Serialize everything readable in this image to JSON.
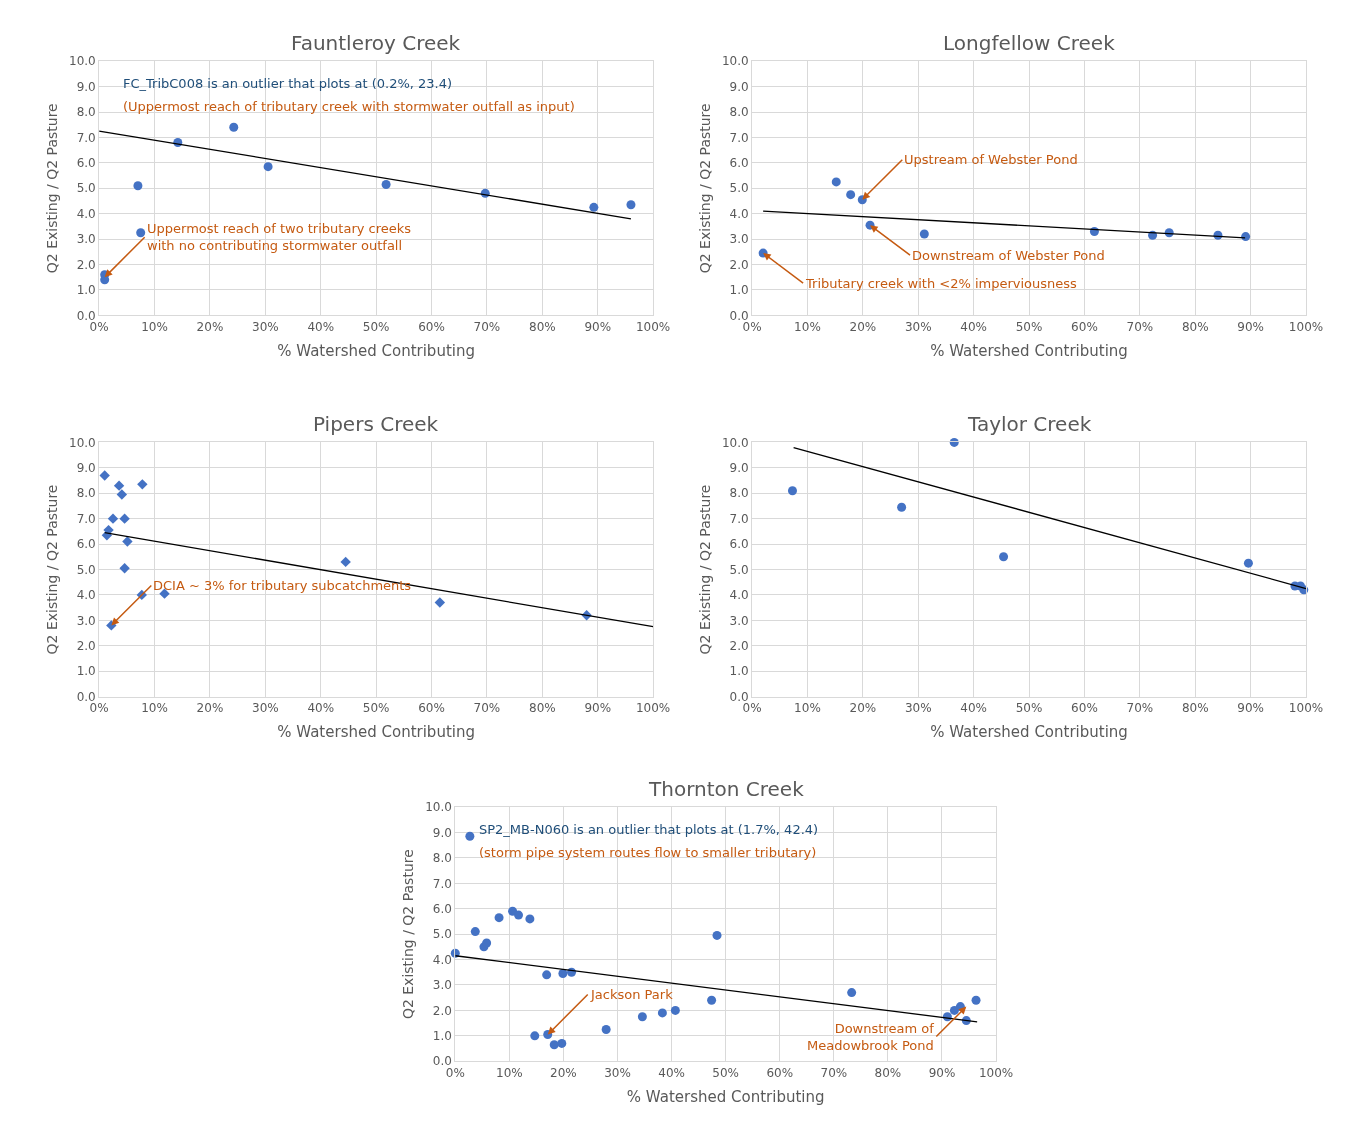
{
  "chart_data": [
    {
      "type": "scatter",
      "title": "Fauntleroy Creek",
      "xlabel": "% Watershed Contributing",
      "ylabel": "Q2 Existing / Q2 Pasture",
      "xlim": [
        0,
        100
      ],
      "ylim": [
        0,
        10
      ],
      "xticks": [
        {
          "value": 0,
          "label": "0%"
        },
        {
          "value": 10,
          "label": "10%"
        },
        {
          "value": 20,
          "label": "20%"
        },
        {
          "value": 30,
          "label": "30%"
        },
        {
          "value": 40,
          "label": "40%"
        },
        {
          "value": 50,
          "label": "50%"
        },
        {
          "value": 60,
          "label": "60%"
        },
        {
          "value": 70,
          "label": "70%"
        },
        {
          "value": 80,
          "label": "80%"
        },
        {
          "value": 90,
          "label": "90%"
        },
        {
          "value": 100,
          "label": "100%"
        }
      ],
      "yticks": [
        {
          "value": 0,
          "label": "0.0"
        },
        {
          "value": 1,
          "label": "1.0"
        },
        {
          "value": 2,
          "label": "2.0"
        },
        {
          "value": 3,
          "label": "3.0"
        },
        {
          "value": 4,
          "label": "4.0"
        },
        {
          "value": 5,
          "label": "5.0"
        },
        {
          "value": 6,
          "label": "6.0"
        },
        {
          "value": 7,
          "label": "7.0"
        },
        {
          "value": 8,
          "label": "8.0"
        },
        {
          "value": 9,
          "label": "9.0"
        },
        {
          "value": 10,
          "label": "10.0"
        }
      ],
      "grid": true,
      "series": [
        {
          "type": "scatter",
          "marker": "circle",
          "color": "#4472c4",
          "x": [
            1,
            1,
            7,
            7.5,
            14.2,
            24.3,
            30.5,
            51.8,
            69.7,
            89.3,
            96
          ],
          "values": [
            1.6,
            1.4,
            5.1,
            3.25,
            6.8,
            7.4,
            5.85,
            5.15,
            4.8,
            4.25,
            4.35
          ]
        },
        {
          "type": "line",
          "marker": "none",
          "color": "#000000",
          "x": [
            0,
            96
          ],
          "values": [
            7.25,
            3.8
          ]
        }
      ],
      "annotations": [
        "FC_TribC008 is an outlier that plots at (0.2%, 23.4)",
        "(Uppermost reach of tributary creek with stormwater outfall as input)",
        {
          "text": "Uppermost reach of two tributary creeks\nwith no contributing stormwater outfall",
          "x": 1,
          "y": 1.5
        }
      ]
    },
    {
      "type": "scatter",
      "title": "Longfellow Creek",
      "xlabel": "% Watershed Contributing",
      "ylabel": "Q2 Existing / Q2 Pasture",
      "xlim": [
        0,
        100
      ],
      "ylim": [
        0,
        10
      ],
      "xticks": [
        {
          "value": 0,
          "label": "0%"
        },
        {
          "value": 10,
          "label": "10%"
        },
        {
          "value": 20,
          "label": "20%"
        },
        {
          "value": 30,
          "label": "30%"
        },
        {
          "value": 40,
          "label": "40%"
        },
        {
          "value": 50,
          "label": "50%"
        },
        {
          "value": 60,
          "label": "60%"
        },
        {
          "value": 70,
          "label": "70%"
        },
        {
          "value": 80,
          "label": "80%"
        },
        {
          "value": 90,
          "label": "90%"
        },
        {
          "value": 100,
          "label": "100%"
        }
      ],
      "yticks": [
        {
          "value": 0,
          "label": "0.0"
        },
        {
          "value": 1,
          "label": "1.0"
        },
        {
          "value": 2,
          "label": "2.0"
        },
        {
          "value": 3,
          "label": "3.0"
        },
        {
          "value": 4,
          "label": "4.0"
        },
        {
          "value": 5,
          "label": "5.0"
        },
        {
          "value": 6,
          "label": "6.0"
        },
        {
          "value": 7,
          "label": "7.0"
        },
        {
          "value": 8,
          "label": "8.0"
        },
        {
          "value": 9,
          "label": "9.0"
        },
        {
          "value": 10,
          "label": "10.0"
        }
      ],
      "grid": true,
      "series": [
        {
          "type": "scatter",
          "marker": "circle",
          "color": "#4472c4",
          "x": [
            2,
            15.2,
            17.8,
            19.9,
            21.3,
            31.1,
            61.8,
            72.3,
            75.3,
            84.1,
            89.1
          ],
          "values": [
            2.45,
            5.25,
            4.75,
            4.55,
            3.55,
            3.2,
            3.3,
            3.15,
            3.25,
            3.15,
            3.1
          ]
        },
        {
          "type": "line",
          "marker": "none",
          "color": "#000000",
          "x": [
            2,
            89
          ],
          "values": [
            4.1,
            3.05
          ]
        }
      ],
      "annotations": [
        {
          "text": "Upstream of Webster Pond",
          "x": 19.9,
          "y": 4.55
        },
        {
          "text": "Downstream of Webster Pond",
          "x": 21.3,
          "y": 3.55
        },
        {
          "text": "Tributary creek with <2% imperviousness",
          "x": 2,
          "y": 2.45
        }
      ]
    },
    {
      "type": "scatter",
      "title": "Pipers Creek",
      "xlabel": "% Watershed Contributing",
      "ylabel": "Q2 Existing / Q2 Pasture",
      "xlim": [
        0,
        100
      ],
      "ylim": [
        0,
        10
      ],
      "xticks": [
        {
          "value": 0,
          "label": "0%"
        },
        {
          "value": 10,
          "label": "10%"
        },
        {
          "value": 20,
          "label": "20%"
        },
        {
          "value": 30,
          "label": "30%"
        },
        {
          "value": 40,
          "label": "40%"
        },
        {
          "value": 50,
          "label": "50%"
        },
        {
          "value": 60,
          "label": "60%"
        },
        {
          "value": 70,
          "label": "70%"
        },
        {
          "value": 80,
          "label": "80%"
        },
        {
          "value": 90,
          "label": "90%"
        },
        {
          "value": 100,
          "label": "100%"
        }
      ],
      "yticks": [
        {
          "value": 0,
          "label": "0.0"
        },
        {
          "value": 1,
          "label": "1.0"
        },
        {
          "value": 2,
          "label": "2.0"
        },
        {
          "value": 3,
          "label": "3.0"
        },
        {
          "value": 4,
          "label": "4.0"
        },
        {
          "value": 5,
          "label": "5.0"
        },
        {
          "value": 6,
          "label": "6.0"
        },
        {
          "value": 7,
          "label": "7.0"
        },
        {
          "value": 8,
          "label": "8.0"
        },
        {
          "value": 9,
          "label": "9.0"
        },
        {
          "value": 10,
          "label": "10.0"
        }
      ],
      "grid": true,
      "series": [
        {
          "type": "scatter",
          "marker": "diamond",
          "color": "#4472c4",
          "x": [
            1,
            3.6,
            7.8,
            4.1,
            2.5,
            4.6,
            1.7,
            1.4,
            5.1,
            4.6,
            7.7,
            11.8,
            2.2,
            44.5,
            61.5,
            88
          ],
          "values": [
            8.7,
            8.3,
            8.35,
            7.95,
            7.0,
            7.0,
            6.55,
            6.35,
            6.1,
            5.05,
            4.0,
            4.05,
            2.8,
            5.3,
            3.7,
            3.2
          ]
        },
        {
          "type": "line",
          "marker": "none",
          "color": "#000000",
          "x": [
            1,
            100
          ],
          "values": [
            6.45,
            2.75
          ]
        }
      ],
      "annotations": [
        {
          "text": "DCIA ~ 3% for tributary subcatchments",
          "x": 2.2,
          "y": 2.8
        }
      ]
    },
    {
      "type": "scatter",
      "title": "Taylor Creek",
      "xlabel": "% Watershed Contributing",
      "ylabel": "Q2 Existing / Q2 Pasture",
      "xlim": [
        0,
        100
      ],
      "ylim": [
        0,
        10
      ],
      "xticks": [
        {
          "value": 0,
          "label": "0%"
        },
        {
          "value": 10,
          "label": "10%"
        },
        {
          "value": 20,
          "label": "20%"
        },
        {
          "value": 30,
          "label": "30%"
        },
        {
          "value": 40,
          "label": "40%"
        },
        {
          "value": 50,
          "label": "50%"
        },
        {
          "value": 60,
          "label": "60%"
        },
        {
          "value": 70,
          "label": "70%"
        },
        {
          "value": 80,
          "label": "80%"
        },
        {
          "value": 90,
          "label": "90%"
        },
        {
          "value": 100,
          "label": "100%"
        }
      ],
      "yticks": [
        {
          "value": 0,
          "label": "0.0"
        },
        {
          "value": 1,
          "label": "1.0"
        },
        {
          "value": 2,
          "label": "2.0"
        },
        {
          "value": 3,
          "label": "3.0"
        },
        {
          "value": 4,
          "label": "4.0"
        },
        {
          "value": 5,
          "label": "5.0"
        },
        {
          "value": 6,
          "label": "6.0"
        },
        {
          "value": 7,
          "label": "7.0"
        },
        {
          "value": 8,
          "label": "8.0"
        },
        {
          "value": 9,
          "label": "9.0"
        },
        {
          "value": 10,
          "label": "10.0"
        }
      ],
      "grid": true,
      "series": [
        {
          "type": "scatter",
          "marker": "circle",
          "color": "#4472c4",
          "x": [
            7.3,
            27,
            36.5,
            45.4,
            89.6,
            98,
            99,
            99.6
          ],
          "values": [
            8.1,
            7.45,
            10.0,
            5.5,
            5.25,
            4.35,
            4.35,
            4.2
          ]
        },
        {
          "type": "line",
          "marker": "none",
          "color": "#000000",
          "x": [
            7.5,
            100
          ],
          "values": [
            9.8,
            4.25
          ]
        }
      ]
    },
    {
      "type": "scatter",
      "title": "Thornton Creek",
      "xlabel": "% Watershed Contributing",
      "ylabel": "Q2 Existing / Q2 Pasture",
      "xlim": [
        0,
        100
      ],
      "ylim": [
        0,
        10
      ],
      "xticks": [
        {
          "value": 0,
          "label": "0%"
        },
        {
          "value": 10,
          "label": "10%"
        },
        {
          "value": 20,
          "label": "20%"
        },
        {
          "value": 30,
          "label": "30%"
        },
        {
          "value": 40,
          "label": "40%"
        },
        {
          "value": 50,
          "label": "50%"
        },
        {
          "value": 60,
          "label": "60%"
        },
        {
          "value": 70,
          "label": "70%"
        },
        {
          "value": 80,
          "label": "80%"
        },
        {
          "value": 90,
          "label": "90%"
        },
        {
          "value": 100,
          "label": "100%"
        }
      ],
      "yticks": [
        {
          "value": 0,
          "label": "0.0"
        },
        {
          "value": 1,
          "label": "1.0"
        },
        {
          "value": 2,
          "label": "2.0"
        },
        {
          "value": 3,
          "label": "3.0"
        },
        {
          "value": 4,
          "label": "4.0"
        },
        {
          "value": 5,
          "label": "5.0"
        },
        {
          "value": 6,
          "label": "6.0"
        },
        {
          "value": 7,
          "label": "7.0"
        },
        {
          "value": 8,
          "label": "8.0"
        },
        {
          "value": 9,
          "label": "9.0"
        },
        {
          "value": 10,
          "label": "10.0"
        }
      ],
      "grid": true,
      "series": [
        {
          "type": "scatter",
          "marker": "circle",
          "color": "#4472c4",
          "x": [
            2.7,
            0,
            3.7,
            5.3,
            5.8,
            8.1,
            10.6,
            11.7,
            13.8,
            16.9,
            19.9,
            21.5,
            14.7,
            17.1,
            18.3,
            19.7,
            27.9,
            34.6,
            38.3,
            40.7,
            47.4,
            48.4,
            73.3,
            91,
            92.3,
            93.4,
            94.5,
            96.3
          ],
          "values": [
            8.85,
            4.25,
            5.1,
            4.5,
            4.65,
            5.65,
            5.9,
            5.75,
            5.6,
            3.4,
            3.45,
            3.5,
            1.0,
            1.05,
            0.65,
            0.7,
            1.25,
            1.75,
            1.9,
            2.0,
            2.4,
            4.95,
            2.7,
            1.75,
            2.0,
            2.15,
            1.6,
            2.4
          ]
        },
        {
          "type": "line",
          "marker": "none",
          "color": "#000000",
          "x": [
            0,
            96.5
          ],
          "values": [
            4.15,
            1.55
          ]
        }
      ],
      "annotations": [
        "SP2_MB-N060 is an outlier that plots at (1.7%, 42.4)",
        "(storm pipe system routes flow to smaller tributary)",
        {
          "text": "Jackson Park",
          "x": 17.1,
          "y": 1.05
        },
        {
          "text": "Downstream of\nMeadowbrook Pond",
          "x": 94.5,
          "y": 2.15
        }
      ]
    }
  ]
}
